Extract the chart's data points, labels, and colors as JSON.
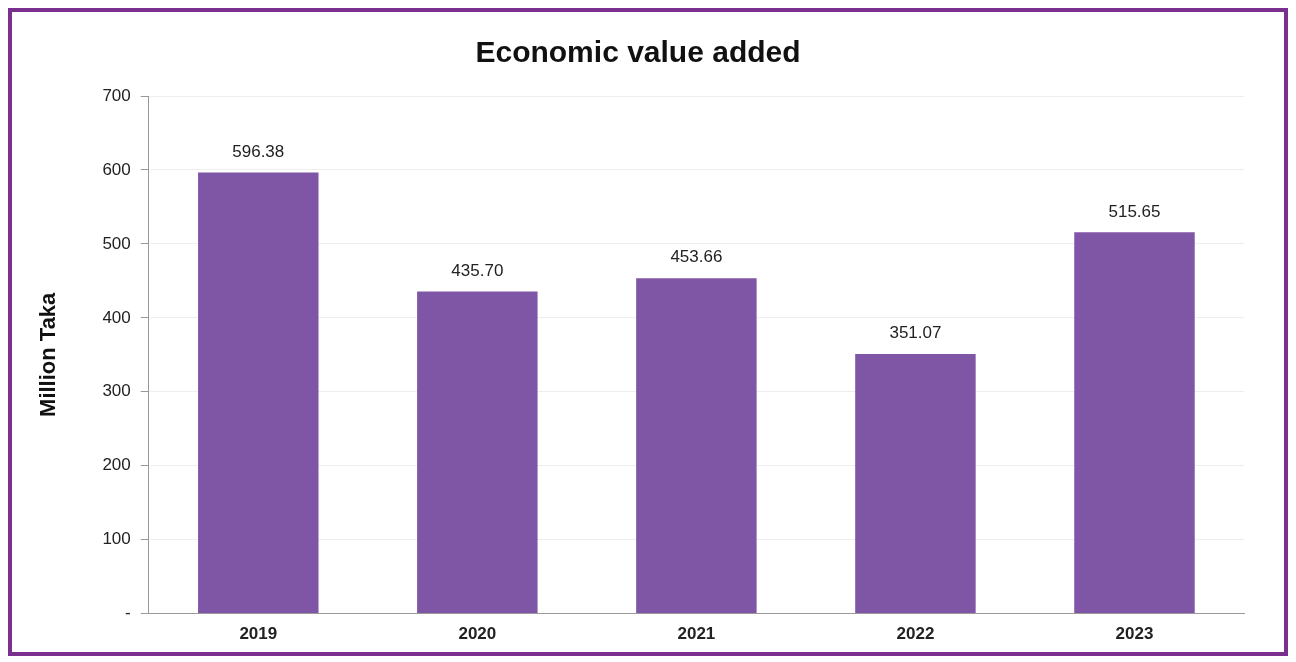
{
  "chart_data": {
    "type": "bar",
    "title": "Economic value added",
    "ylabel": "Million Taka",
    "categories": [
      "2019",
      "2020",
      "2021",
      "2022",
      "2023"
    ],
    "values": [
      596.38,
      435.7,
      453.66,
      351.07,
      515.65
    ],
    "value_labels": [
      "596.38",
      "435.70",
      "453.66",
      "351.07",
      "515.65"
    ],
    "color": "#7f56a6",
    "ylim": [
      0,
      700
    ],
    "yticks": [
      {
        "value": 0,
        "label": "-"
      },
      100,
      200,
      300,
      400,
      500,
      600,
      700
    ],
    "grid": "y",
    "legend": false
  }
}
